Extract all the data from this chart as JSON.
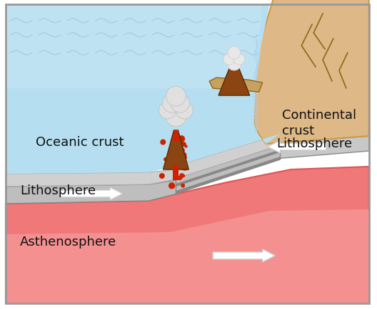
{
  "bg_color": "#ffffff",
  "C_asthen": "#f07878",
  "C_asthen_light": "#f59090",
  "C_litho": "#bebebe",
  "C_litho_dark": "#a8a8a8",
  "C_ocean": "#b5dff0",
  "C_ocean_light": "#cce8f5",
  "C_cont": "#deb887",
  "C_cont_edge": "#cc9944",
  "C_border": "#888888",
  "C_white": "#ffffff",
  "C_volcano": "#8B4513",
  "C_lava": "#cc2200",
  "C_smoke": "#e0e0e0",
  "C_island": "#c8a060",
  "C_crack": "#8B6914",
  "C_wave": "#88bbdd",
  "labels": {
    "oceanic_crust": "Oceanic crust",
    "continental_crust": "Continental\ncrust",
    "lithosphere_left": "Lithosphere",
    "lithosphere_right": "Lithosphere",
    "asthenosphere": "Asthenosphere"
  },
  "label_fontsize": 13,
  "label_color": "#111111"
}
